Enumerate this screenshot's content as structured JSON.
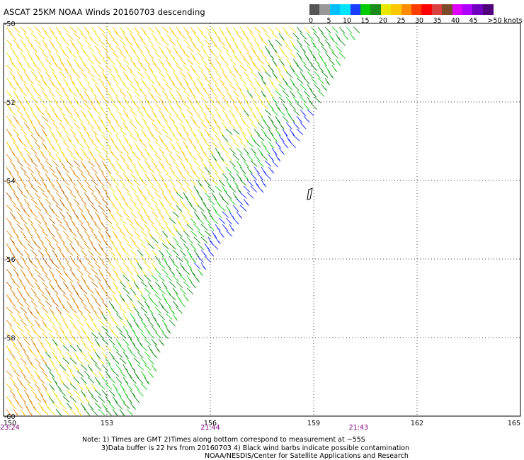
{
  "title": "ASCAT 25KM NOAA Winds 20160703 descending",
  "legend": {
    "colors": [
      "#555555",
      "#999999",
      "#00bfff",
      "#00e5ff",
      "#1a3dff",
      "#00cc00",
      "#1a8c1a",
      "#e8e800",
      "#ffc800",
      "#ff8c00",
      "#ff3c00",
      "#ff0000",
      "#d94040",
      "#7a4a2a",
      "#e000ff",
      "#b000ff",
      "#7000c0",
      "#50007a"
    ],
    "labels": [
      "0",
      "5",
      "10",
      "15",
      "20",
      "25",
      "30",
      "35",
      "40",
      "45",
      ">50 knots"
    ]
  },
  "map": {
    "lat_labels": [
      "-50",
      "-52",
      "-54",
      "-56",
      "-58",
      "-60"
    ],
    "lon_labels": [
      "150",
      "153",
      "156",
      "159",
      "162",
      "165"
    ],
    "lat_values": [
      -50,
      -52,
      -54,
      -56,
      -58,
      -60
    ],
    "lon_values": [
      150,
      153,
      156,
      159,
      162,
      165
    ]
  },
  "times": [
    {
      "label": "23:24",
      "lon": 150
    },
    {
      "label": "21:44",
      "lon": 156
    },
    {
      "label": "21:43",
      "lon": 160.3
    }
  ],
  "notes": {
    "line1": "Note: 1) Times are GMT 2)Times along bottom correspond to measurement at ~55S",
    "line2": "3)Data buffer is 22 hrs from 20160703 4) Black wind barbs indicate possible contamination",
    "line3": "NOAA/NESDIS/Center for Satellite Applications and Research"
  },
  "wind_colors": {
    "blue": "#1a2dff",
    "green_light": "#22cc22",
    "green_dark": "#148c14",
    "yellow": "#f0e010",
    "gold": "#ffc400",
    "orange": "#e08a10",
    "brown": "#c06a10"
  }
}
